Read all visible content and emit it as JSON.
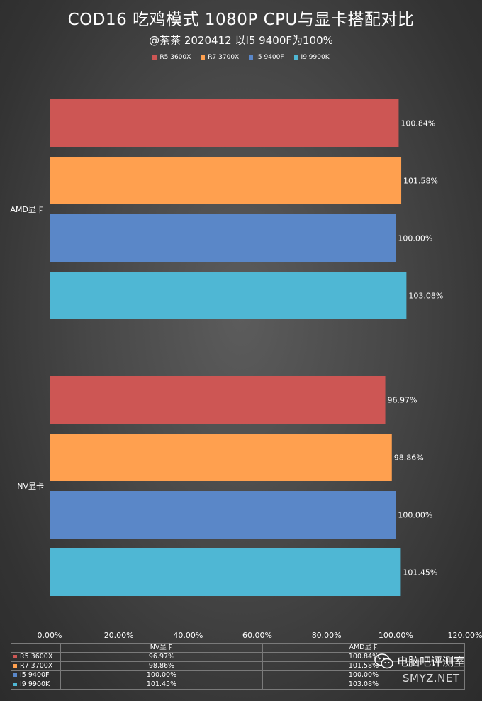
{
  "chart_data": {
    "type": "bar",
    "orientation": "horizontal",
    "title": "COD16 吃鸡模式 1080P CPU与显卡搭配对比",
    "subtitle": "@茶茶 2020412   以I5 9400F为100%",
    "categories": [
      "AMD显卡",
      "NV显卡"
    ],
    "series": [
      {
        "name": "R5 3600X",
        "color": "#cd5654",
        "values": [
          100.84,
          96.97
        ],
        "labels": [
          "100.84%",
          "96.97%"
        ]
      },
      {
        "name": "R7 3700X",
        "color": "#ffa04f",
        "values": [
          101.58,
          98.86
        ],
        "labels": [
          "101.58%",
          "98.86%"
        ]
      },
      {
        "name": "I5 9400F",
        "color": "#5a87c8",
        "values": [
          100.0,
          100.0
        ],
        "labels": [
          "100.00%",
          "100.00%"
        ]
      },
      {
        "name": "I9 9900K",
        "color": "#4fb7d4",
        "values": [
          103.08,
          101.45
        ],
        "labels": [
          "103.08%",
          "101.45%"
        ]
      }
    ],
    "xlim": [
      0,
      120
    ],
    "ticks": [
      "0.00%",
      "20.00%",
      "40.00%",
      "60.00%",
      "80.00%",
      "100.00%",
      "120.00%"
    ],
    "grid": false,
    "legend_position": "top"
  },
  "table": {
    "headers": [
      "",
      "NV显卡",
      "AMD显卡"
    ],
    "rows": [
      {
        "name": "R5 3600X",
        "nv": "96.97%",
        "amd": "100.84%"
      },
      {
        "name": "R7 3700X",
        "nv": "98.86%",
        "amd": "101.58%"
      },
      {
        "name": "I5 9400F",
        "nv": "100.00%",
        "amd": "100.00%"
      },
      {
        "name": "I9 9900K",
        "nv": "101.45%",
        "amd": "103.08%"
      }
    ]
  },
  "watermark": {
    "name": "电脑吧评测室",
    "site": "SMYZ.NET",
    "icon": "wechat-logo-icon"
  }
}
